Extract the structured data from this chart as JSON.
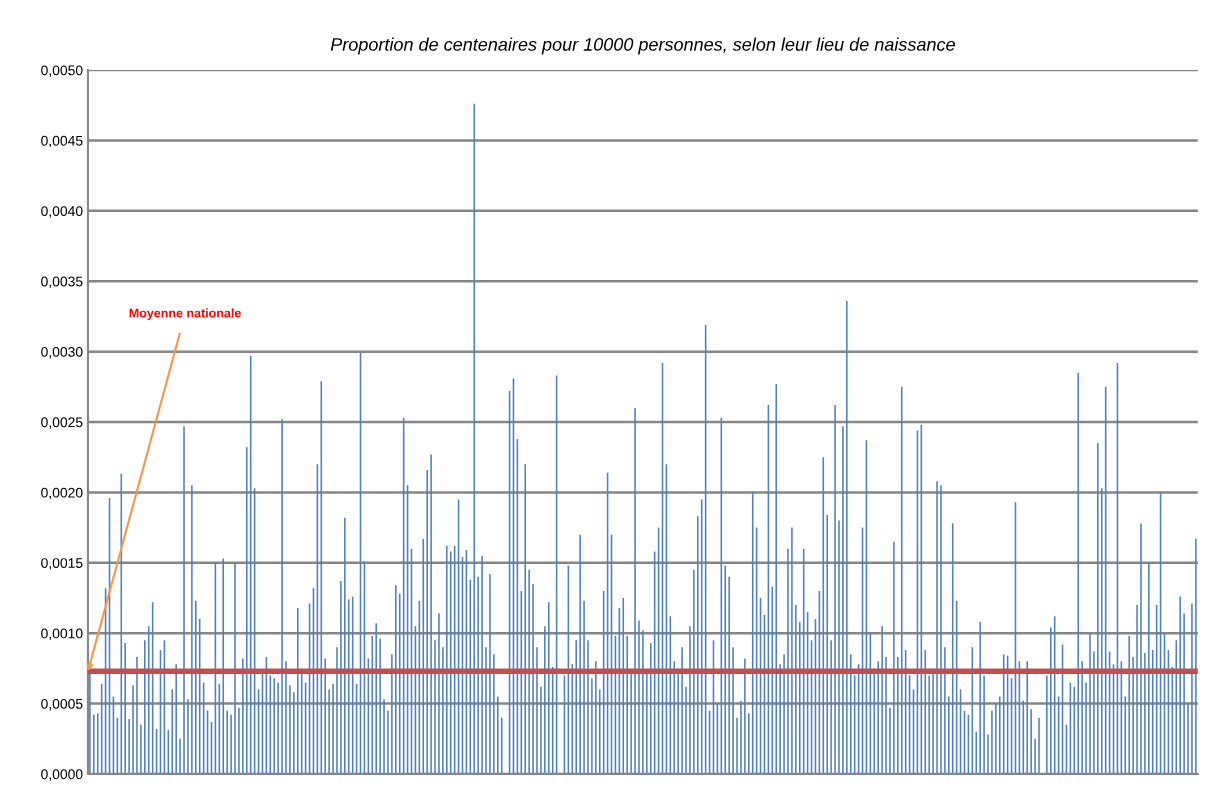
{
  "chart_data": {
    "type": "bar",
    "title": "Proportion de centenaires pour 10000 personnes, selon leur lieu de naissance",
    "categories": [
      null,
      null,
      null,
      null,
      null,
      null,
      null,
      null,
      null,
      null,
      null,
      null,
      null,
      null,
      null,
      null,
      null,
      null,
      null,
      null,
      null,
      null,
      null,
      null,
      null,
      null,
      null,
      null,
      null,
      null,
      null,
      null,
      null,
      null,
      null,
      null,
      null,
      null,
      null,
      null,
      null,
      null,
      null,
      null,
      null,
      null,
      null,
      null,
      null,
      null,
      null,
      null,
      null,
      null,
      null,
      null,
      null,
      null,
      null,
      null,
      null,
      null,
      null,
      null,
      null,
      null,
      null,
      null,
      null,
      null,
      null,
      null,
      null,
      null,
      null,
      null,
      null,
      null,
      null,
      null,
      null,
      null,
      null,
      null,
      null,
      null,
      null,
      null,
      null,
      null,
      null,
      null,
      null,
      null,
      null,
      null,
      null,
      null,
      null,
      null,
      null,
      null,
      null,
      null,
      null,
      null,
      null,
      null,
      null,
      null,
      null,
      null,
      null,
      null,
      null,
      null,
      null,
      null,
      null,
      null,
      null,
      null,
      null,
      null,
      null,
      null,
      null,
      null,
      null,
      null,
      null,
      null,
      null,
      null,
      null,
      null,
      null,
      null,
      null,
      null,
      null,
      null,
      null,
      null,
      null,
      null,
      null,
      null,
      null,
      null,
      null,
      null,
      null,
      null,
      null,
      null,
      null,
      null,
      null,
      null,
      null,
      null,
      null,
      null,
      null,
      null,
      null,
      null,
      null,
      null,
      null,
      null,
      null,
      null,
      null,
      null,
      null,
      null,
      null,
      null,
      null,
      null,
      null,
      null,
      null,
      null,
      null,
      null,
      null,
      null,
      null,
      null,
      null,
      null,
      null,
      null,
      null,
      null,
      null,
      null,
      null,
      null,
      null,
      null,
      null,
      null,
      null,
      null,
      null,
      null,
      null,
      null,
      null,
      null,
      null,
      null,
      null,
      null,
      null,
      null,
      null,
      null,
      null,
      null,
      null,
      null,
      null,
      null,
      null,
      null,
      null,
      null,
      null,
      null,
      null,
      null,
      null,
      null,
      null,
      null,
      null,
      null,
      null,
      null,
      null,
      null,
      null,
      null,
      null,
      null,
      null,
      null,
      null,
      null,
      null,
      null,
      null,
      null,
      null,
      null,
      null,
      null,
      null,
      null,
      null,
      null,
      null,
      null,
      null,
      null,
      null,
      null,
      null,
      null,
      null,
      null,
      null,
      null,
      null,
      null,
      null,
      null,
      null
    ],
    "values": [
      0.00073,
      0.00042,
      0.00043,
      0.00064,
      0.00132,
      0.00196,
      0.00055,
      0.0004,
      0.00213,
      0.00093,
      0.00039,
      0.00063,
      0.00083,
      0.00035,
      0.00095,
      0.00105,
      0.00122,
      0.00032,
      0.00088,
      0.00095,
      0.00031,
      0.0006,
      0.00078,
      0.00025,
      0.00247,
      0.00053,
      0.00205,
      0.00123,
      0.0011,
      0.00065,
      0.00045,
      0.00037,
      0.0015,
      0.00064,
      0.00153,
      0.00045,
      0.00042,
      0.0015,
      0.00047,
      0.00082,
      0.00232,
      0.00297,
      0.00203,
      0.0006,
      0.00072,
      0.00083,
      0.0007,
      0.00068,
      0.00065,
      0.00252,
      0.0008,
      0.00063,
      0.00058,
      0.00118,
      0.00074,
      0.00065,
      0.00121,
      0.00132,
      0.0022,
      0.00279,
      0.00082,
      0.0006,
      0.00064,
      0.0009,
      0.00137,
      0.00182,
      0.00124,
      0.00126,
      0.00064,
      0.00299,
      0.00151,
      0.00082,
      0.00098,
      0.00107,
      0.00096,
      0.00053,
      0.00045,
      0.00085,
      0.00134,
      0.00128,
      0.00253,
      0.00205,
      0.0016,
      0.00105,
      0.00123,
      0.00167,
      0.00216,
      0.00227,
      0.00095,
      0.00114,
      0.0009,
      0.00162,
      0.00158,
      0.00162,
      0.00195,
      0.00154,
      0.00159,
      0.00138,
      0.00476,
      0.0014,
      0.00155,
      0.0009,
      0.00142,
      0.00085,
      0.00055,
      0.0004,
      null,
      0.00272,
      0.00281,
      0.00238,
      0.0013,
      0.0022,
      0.00145,
      0.00135,
      0.0009,
      0.00062,
      0.00105,
      0.00122,
      0.00076,
      0.00283,
      null,
      0.0007,
      0.00148,
      0.00078,
      0.00095,
      0.0017,
      0.00123,
      0.00095,
      0.00068,
      0.0008,
      0.0006,
      0.0013,
      0.00214,
      0.0017,
      0.00098,
      0.00118,
      0.00125,
      0.00098,
      0.00072,
      0.0026,
      0.00109,
      0.00102,
      0.00072,
      0.00093,
      0.00158,
      0.00175,
      0.00292,
      0.0022,
      0.00112,
      0.0008,
      0.00075,
      0.0009,
      0.00062,
      0.00105,
      0.00145,
      0.00183,
      0.00195,
      0.00319,
      0.00045,
      0.00095,
      0.0005,
      0.00253,
      0.00148,
      0.0014,
      0.0009,
      0.0004,
      0.00052,
      0.00082,
      0.00043,
      0.002,
      0.00175,
      0.00125,
      0.00113,
      0.00262,
      0.00133,
      0.00277,
      0.00078,
      0.00085,
      0.0016,
      0.00175,
      0.0012,
      0.00108,
      0.0016,
      0.00115,
      0.00095,
      0.0011,
      0.0013,
      0.00225,
      0.00184,
      0.00095,
      0.00262,
      0.0018,
      0.00247,
      0.00336,
      0.00085,
      0.0007,
      0.00078,
      0.00175,
      0.00237,
      0.001,
      0.00075,
      0.0008,
      0.00105,
      0.00083,
      0.00047,
      0.00165,
      0.00083,
      0.00275,
      0.00088,
      0.0007,
      0.0006,
      0.00244,
      0.00248,
      0.00088,
      0.0007,
      0.00075,
      0.00208,
      0.00205,
      0.0009,
      0.00055,
      0.00178,
      0.00123,
      0.0006,
      0.00045,
      0.00042,
      0.0009,
      0.0003,
      0.00108,
      0.0007,
      0.00028,
      0.00045,
      0.0005,
      0.00055,
      0.00085,
      0.00084,
      0.00068,
      0.00193,
      0.0008,
      0.00052,
      0.0008,
      0.00046,
      0.00025,
      0.0004,
      null,
      0.0007,
      0.00104,
      0.00112,
      0.00055,
      0.00092,
      0.00035,
      0.00065,
      0.00062,
      0.00285,
      0.0008,
      0.00065,
      0.001,
      0.00087,
      0.00235,
      0.00203,
      0.00275,
      0.00087,
      0.00078,
      0.00292,
      0.0008,
      0.00055,
      0.00098,
      0.00083,
      0.0012,
      0.00178,
      0.00086,
      0.0015,
      0.00088,
      0.0012,
      0.002,
      0.001,
      0.00088,
      0.00076,
      0.00095,
      0.00126,
      0.00114,
      0.0005,
      0.00121,
      0.00167
    ],
    "color": "#4f81bd",
    "ylim": [
      0,
      0.005
    ],
    "yticks": [
      {
        "value": 0,
        "label": "0,0000"
      },
      {
        "value": 0.0005,
        "label": "0,0005"
      },
      {
        "value": 0.001,
        "label": "0,0010"
      },
      {
        "value": 0.0015,
        "label": "0,0015"
      },
      {
        "value": 0.002,
        "label": "0,0020"
      },
      {
        "value": 0.0025,
        "label": "0,0025"
      },
      {
        "value": 0.003,
        "label": "0,0030"
      },
      {
        "value": 0.0035,
        "label": "0,0035"
      },
      {
        "value": 0.004,
        "label": "0,0040"
      },
      {
        "value": 0.0045,
        "label": "0,0045"
      },
      {
        "value": 0.005,
        "label": "0,0050"
      }
    ],
    "grid": "y",
    "ref_lines": [
      {
        "axis": "y",
        "value": 0.00073,
        "label": "Moyenne nationale",
        "color": "#c0504d"
      }
    ]
  }
}
